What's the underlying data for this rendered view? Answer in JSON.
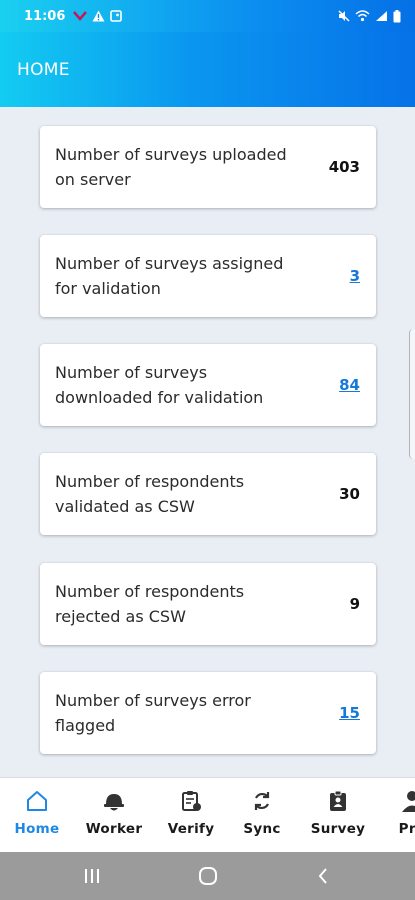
{
  "status_bar": {
    "time": "11:06",
    "left_icons": [
      "app-notification-icon",
      "warning-icon",
      "image-icon"
    ],
    "right_icons": [
      "mute-icon",
      "wifi-icon",
      "signal-icon",
      "battery-icon"
    ]
  },
  "app_bar": {
    "title": "HOME"
  },
  "stats": [
    {
      "label": "Number of surveys uploaded on server",
      "value": "403",
      "is_link": false
    },
    {
      "label": "Number of surveys assigned for validation",
      "value": "3",
      "is_link": true
    },
    {
      "label": "Number of surveys downloaded for validation",
      "value": "84",
      "is_link": true
    },
    {
      "label": "Number of respondents validated as CSW",
      "value": "30",
      "is_link": false
    },
    {
      "label": "Number of respondents rejected as CSW",
      "value": "9",
      "is_link": false
    },
    {
      "label": "Number of surveys error flagged",
      "value": "15",
      "is_link": true
    }
  ],
  "bottom_nav": {
    "items": [
      {
        "label": "Home",
        "icon": "home-icon",
        "active": true
      },
      {
        "label": "Worker",
        "icon": "helmet-icon",
        "active": false
      },
      {
        "label": "Verify",
        "icon": "clipboard-icon",
        "active": false
      },
      {
        "label": "Sync",
        "icon": "sync-icon",
        "active": false
      },
      {
        "label": "Survey",
        "icon": "badge-icon",
        "active": false
      },
      {
        "label": "Pro",
        "icon": "profile-icon",
        "active": false
      }
    ]
  },
  "colors": {
    "accent": "#1e88e5",
    "link": "#1878d8",
    "app_bar_start": "#13ccf1",
    "app_bar_end": "#0672e8",
    "background": "#e9eef5"
  }
}
